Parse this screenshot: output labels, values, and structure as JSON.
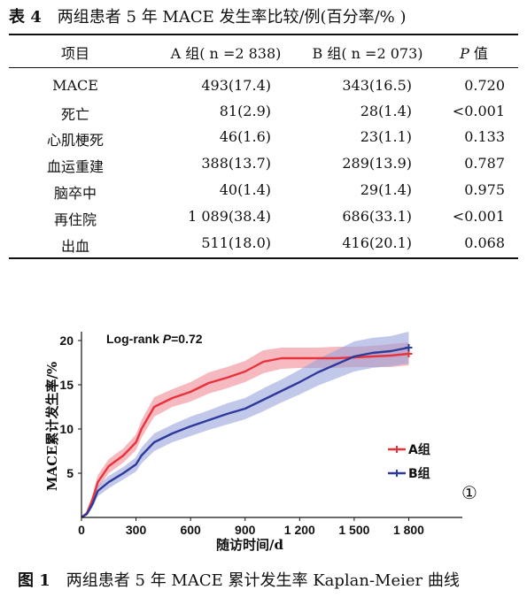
{
  "table": {
    "label": "表 4",
    "title": "两组患者 5 年 MACE 发生率比较/例(百分率/% )",
    "headers": {
      "item": "项目",
      "group_a": "A 组( n =2 838)",
      "group_b": "B 组( n =2 073)",
      "p_prefix": "P",
      "p_suffix": " 值"
    },
    "rows": [
      {
        "item": "MACE",
        "a": "493(17.4)",
        "b": "343(16.5)",
        "p": "0.720"
      },
      {
        "item": "死亡",
        "a": "81(2.9)",
        "b": "28(1.4)",
        "p": "<0.001"
      },
      {
        "item": "心肌梗死",
        "a": "46(1.6)",
        "b": "23(1.1)",
        "p": "0.133"
      },
      {
        "item": "血运重建",
        "a": "388(13.7)",
        "b": "289(13.9)",
        "p": "0.787"
      },
      {
        "item": "脑卒中",
        "a": "40(1.4)",
        "b": "29(1.4)",
        "p": "0.975"
      },
      {
        "item": "再住院",
        "a": "1 089(38.4)",
        "b": "686(33.1)",
        "p": "<0.001"
      },
      {
        "item": "出血",
        "a": "511(18.0)",
        "b": "416(20.1)",
        "p": "0.068"
      }
    ]
  },
  "figure": {
    "label": "图 1",
    "caption": "两组患者 5 年 MACE 累计发生率 Kaplan-Meier 曲线",
    "panel_marker": "①"
  },
  "chart_data": {
    "type": "line",
    "annotation": "Log-rank P=0.72",
    "xlabel": "随访时间/d",
    "ylabel": "MACE累计发生率/%",
    "xlim": [
      0,
      1900
    ],
    "ylim": [
      0,
      21
    ],
    "x_ticks": [
      0,
      300,
      600,
      900,
      1200,
      1500,
      1800
    ],
    "x_tick_labels": [
      "0",
      "300",
      "600",
      "900",
      "1 200",
      "1 500",
      "1 800"
    ],
    "y_ticks": [
      5,
      10,
      15,
      20
    ],
    "y_tick_labels": [
      "5",
      "10",
      "15",
      "20"
    ],
    "legend_position": "right",
    "series": [
      {
        "name": "A组",
        "color": "#e8333d",
        "band_color": "#f08a95",
        "x": [
          0,
          30,
          60,
          90,
          150,
          230,
          300,
          330,
          400,
          500,
          600,
          700,
          800,
          900,
          1000,
          1100,
          1200,
          1300,
          1400,
          1500,
          1600,
          1700,
          1800
        ],
        "y": [
          0,
          0.5,
          2,
          4,
          5.8,
          7,
          8.5,
          10,
          12.5,
          13.5,
          14.2,
          15.2,
          15.8,
          16.5,
          17.6,
          18,
          18,
          18,
          18,
          18.1,
          18.2,
          18.3,
          18.5
        ],
        "lower": [
          0,
          0.3,
          1.5,
          3.3,
          5,
          6.2,
          7.6,
          9,
          11.4,
          12.5,
          13.1,
          14,
          14.6,
          15.3,
          16.3,
          16.8,
          16.9,
          16.9,
          16.9,
          17,
          17,
          17,
          17.2
        ],
        "upper": [
          0,
          0.7,
          2.5,
          4.8,
          6.6,
          7.8,
          9.4,
          11,
          13.6,
          14.5,
          15.3,
          16.4,
          17,
          17.7,
          18.9,
          19.2,
          19.2,
          19.2,
          19.3,
          19.3,
          19.4,
          19.6,
          19.8
        ]
      },
      {
        "name": "B组",
        "color": "#2e3a9a",
        "band_color": "#9aa4dc",
        "x": [
          0,
          30,
          60,
          90,
          150,
          230,
          300,
          330,
          400,
          500,
          600,
          700,
          800,
          900,
          1000,
          1100,
          1200,
          1300,
          1400,
          1500,
          1600,
          1700,
          1800
        ],
        "y": [
          0,
          0.4,
          1.5,
          3,
          4,
          5,
          6,
          7,
          8.5,
          9.5,
          10.3,
          11,
          11.7,
          12.3,
          13.3,
          14.3,
          15.3,
          16.4,
          17.3,
          18.2,
          18.6,
          18.8,
          19.2
        ],
        "lower": [
          0,
          0.2,
          1.1,
          2.4,
          3.3,
          4.3,
          5.2,
          6.1,
          7.5,
          8.5,
          9.2,
          9.9,
          10.5,
          11.1,
          12,
          13,
          13.9,
          14.9,
          15.7,
          16.5,
          16.9,
          17.1,
          17.4
        ],
        "upper": [
          0,
          0.6,
          1.9,
          3.6,
          4.7,
          5.7,
          6.8,
          7.9,
          9.5,
          10.5,
          11.4,
          12.1,
          12.9,
          13.5,
          14.6,
          15.6,
          16.7,
          17.9,
          18.9,
          19.9,
          20.3,
          20.5,
          21
        ]
      }
    ]
  }
}
